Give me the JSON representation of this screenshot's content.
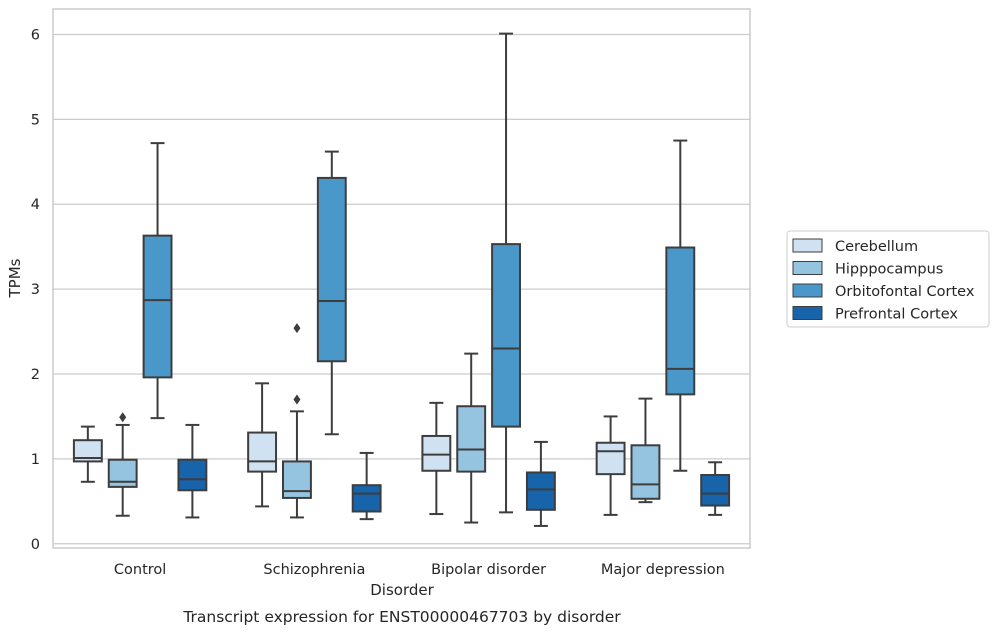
{
  "chart_data": {
    "type": "box",
    "caption": "Transcript expression for ENST00000467703 by disorder",
    "xlabel": "Disorder",
    "ylabel": "TPMs",
    "ylim": [
      -0.05,
      6.3
    ],
    "yticks": [
      0,
      1,
      2,
      3,
      4,
      5,
      6
    ],
    "grid": "horizontal",
    "legend_position": "right",
    "categories": [
      "Control",
      "Schizophrenia",
      "Bipolar disorder",
      "Major depression"
    ],
    "series": [
      {
        "name": "Cerebellum",
        "color": "#d0e1f2",
        "boxes": [
          {
            "whislo": 0.73,
            "q1": 0.97,
            "med": 1.01,
            "q3": 1.22,
            "whishi": 1.38,
            "fliers": []
          },
          {
            "whislo": 0.44,
            "q1": 0.85,
            "med": 0.97,
            "q3": 1.31,
            "whishi": 1.89,
            "fliers": []
          },
          {
            "whislo": 0.35,
            "q1": 0.86,
            "med": 1.05,
            "q3": 1.27,
            "whishi": 1.66,
            "fliers": []
          },
          {
            "whislo": 0.34,
            "q1": 0.82,
            "med": 1.09,
            "q3": 1.19,
            "whishi": 1.5,
            "fliers": []
          }
        ]
      },
      {
        "name": "Hipppocampus",
        "color": "#94c4df",
        "boxes": [
          {
            "whislo": 0.33,
            "q1": 0.67,
            "med": 0.73,
            "q3": 0.99,
            "whishi": 1.4,
            "fliers": [
              1.49
            ]
          },
          {
            "whislo": 0.31,
            "q1": 0.54,
            "med": 0.62,
            "q3": 0.97,
            "whishi": 1.56,
            "fliers": [
              1.7,
              2.54
            ]
          },
          {
            "whislo": 0.25,
            "q1": 0.85,
            "med": 1.11,
            "q3": 1.62,
            "whishi": 2.24,
            "fliers": []
          },
          {
            "whislo": 0.49,
            "q1": 0.53,
            "med": 0.7,
            "q3": 1.16,
            "whishi": 1.71,
            "fliers": []
          }
        ]
      },
      {
        "name": "Orbitofontal Cortex",
        "color": "#4a98c9",
        "boxes": [
          {
            "whislo": 1.48,
            "q1": 1.96,
            "med": 2.87,
            "q3": 3.63,
            "whishi": 4.72,
            "fliers": []
          },
          {
            "whislo": 1.29,
            "q1": 2.15,
            "med": 2.86,
            "q3": 4.31,
            "whishi": 4.62,
            "fliers": []
          },
          {
            "whislo": 0.37,
            "q1": 1.38,
            "med": 2.3,
            "q3": 3.53,
            "whishi": 6.01,
            "fliers": []
          },
          {
            "whislo": 0.86,
            "q1": 1.76,
            "med": 2.06,
            "q3": 3.49,
            "whishi": 4.75,
            "fliers": []
          }
        ]
      },
      {
        "name": "Prefrontal Cortex",
        "color": "#1764ab",
        "boxes": [
          {
            "whislo": 0.31,
            "q1": 0.63,
            "med": 0.76,
            "q3": 0.99,
            "whishi": 1.4,
            "fliers": []
          },
          {
            "whislo": 0.29,
            "q1": 0.38,
            "med": 0.59,
            "q3": 0.69,
            "whishi": 1.07,
            "fliers": []
          },
          {
            "whislo": 0.21,
            "q1": 0.4,
            "med": 0.64,
            "q3": 0.84,
            "whishi": 1.2,
            "fliers": []
          },
          {
            "whislo": 0.34,
            "q1": 0.45,
            "med": 0.59,
            "q3": 0.81,
            "whishi": 0.96,
            "fliers": []
          }
        ]
      }
    ]
  }
}
